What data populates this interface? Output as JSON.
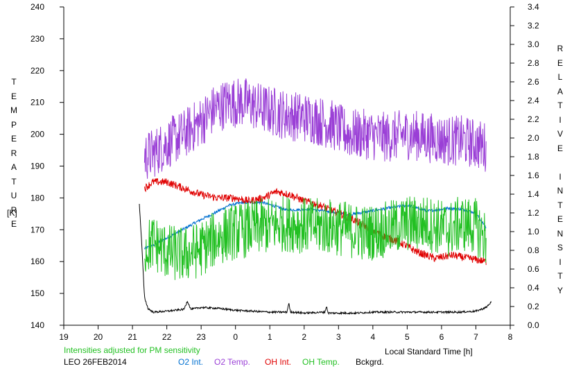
{
  "chart_data": {
    "type": "line",
    "xlabel": "Local Standard Time [h]",
    "ylabel_left_letters": [
      "T",
      "E",
      "M",
      "P",
      "E",
      "R",
      "A",
      "T",
      "U",
      "R",
      "E"
    ],
    "ylabel_left_unit": "[K]",
    "ylabel_right_letters": [
      "R",
      "E",
      "L",
      "A",
      "T",
      "I",
      "V",
      "E",
      "",
      "I",
      "N",
      "T",
      "E",
      "N",
      "S",
      "I",
      "T",
      "Y"
    ],
    "x_ticks": [
      "19",
      "20",
      "21",
      "22",
      "23",
      "0",
      "1",
      "2",
      "3",
      "4",
      "5",
      "6",
      "7",
      "8"
    ],
    "x_range": [
      19,
      32
    ],
    "y_left_ticks": [
      "140",
      "150",
      "160",
      "170",
      "180",
      "190",
      "200",
      "210",
      "220",
      "230",
      "240"
    ],
    "y_left_range": [
      140,
      240
    ],
    "y_right_ticks": [
      "0.0",
      "0.2",
      "0.4",
      "0.6",
      "0.8",
      "1.0",
      "1.2",
      "1.4",
      "1.6",
      "1.8",
      "2.0",
      "2.2",
      "2.4",
      "2.6",
      "2.8",
      "3.0",
      "3.2",
      "3.4"
    ],
    "y_right_range": [
      0,
      3.4
    ],
    "note": "Intensities adjusted for PM sensitivity",
    "station": "LEO 26FEB2014",
    "series": [
      {
        "name": "O2 Int.",
        "color": "#0070d0",
        "axis": "right",
        "noise": 0.015,
        "x": [
          21.35,
          21.6,
          22.0,
          22.5,
          23.0,
          23.4,
          23.8,
          24.2,
          24.8,
          25.5,
          26.2,
          26.8,
          27.3,
          27.8,
          28.4,
          29.0,
          29.6,
          30.2,
          30.6,
          31.0,
          31.3
        ],
        "y": [
          0.82,
          0.85,
          0.93,
          1.03,
          1.13,
          1.2,
          1.28,
          1.31,
          1.31,
          1.23,
          1.24,
          1.21,
          1.18,
          1.21,
          1.25,
          1.28,
          1.22,
          1.25,
          1.24,
          1.2,
          1.04
        ]
      },
      {
        "name": "O2 Temp.",
        "color": "#9a3fd6",
        "axis": "left",
        "noise": 8,
        "x": [
          21.35,
          21.6,
          22.0,
          22.5,
          23.0,
          23.4,
          23.8,
          24.3,
          24.8,
          25.5,
          26.2,
          26.8,
          27.3,
          27.8,
          28.4,
          29.0,
          29.6,
          30.2,
          30.6,
          31.0,
          31.3
        ],
        "y": [
          193,
          194,
          197,
          200,
          204,
          208,
          210,
          210,
          208,
          206,
          205,
          203,
          200,
          200,
          199,
          200,
          199,
          198,
          198,
          197,
          196
        ]
      },
      {
        "name": "OH Int.",
        "color": "#e00000",
        "axis": "left",
        "noise": 1.2,
        "x": [
          21.35,
          21.6,
          22.0,
          22.5,
          23.0,
          23.5,
          24.0,
          24.4,
          24.8,
          25.2,
          25.6,
          26.0,
          26.4,
          26.8,
          27.3,
          27.8,
          28.3,
          28.8,
          29.3,
          29.8,
          30.3,
          30.8,
          31.3
        ],
        "y": [
          183,
          185,
          185,
          183,
          181,
          180,
          180,
          179,
          180,
          182,
          181,
          179,
          178,
          176,
          174,
          171,
          168,
          166,
          163,
          161,
          162,
          161,
          160
        ]
      },
      {
        "name": "OH Temp.",
        "color": "#22c022",
        "axis": "left",
        "noise": 9,
        "x": [
          21.35,
          21.6,
          22.0,
          22.5,
          23.0,
          23.4,
          23.8,
          24.3,
          24.8,
          25.5,
          26.2,
          26.8,
          27.3,
          27.8,
          28.4,
          29.0,
          29.6,
          30.2,
          30.6,
          31.0,
          31.3
        ],
        "y": [
          164,
          166,
          163,
          162,
          164,
          167,
          169,
          170,
          171,
          172,
          171,
          171,
          170,
          169,
          170,
          172,
          172,
          170,
          172,
          171,
          167
        ]
      },
      {
        "name": "Bckgrd.",
        "color": "#000000",
        "axis": "right",
        "noise": 0.01,
        "x": [
          21.2,
          21.28,
          21.35,
          21.45,
          21.6,
          22.0,
          22.5,
          22.6,
          22.7,
          23.0,
          23.5,
          24.0,
          24.5,
          25.0,
          25.5,
          25.55,
          25.6,
          25.7,
          26.0,
          26.6,
          26.65,
          26.7,
          27.0,
          27.5,
          28.0,
          28.5,
          29.0,
          29.5,
          30.0,
          30.5,
          31.0,
          31.3,
          31.45
        ],
        "y": [
          1.3,
          0.8,
          0.3,
          0.18,
          0.14,
          0.15,
          0.17,
          0.26,
          0.17,
          0.19,
          0.18,
          0.16,
          0.15,
          0.14,
          0.14,
          0.24,
          0.14,
          0.14,
          0.13,
          0.14,
          0.2,
          0.13,
          0.13,
          0.13,
          0.14,
          0.14,
          0.14,
          0.14,
          0.14,
          0.14,
          0.15,
          0.19,
          0.25
        ]
      }
    ]
  }
}
